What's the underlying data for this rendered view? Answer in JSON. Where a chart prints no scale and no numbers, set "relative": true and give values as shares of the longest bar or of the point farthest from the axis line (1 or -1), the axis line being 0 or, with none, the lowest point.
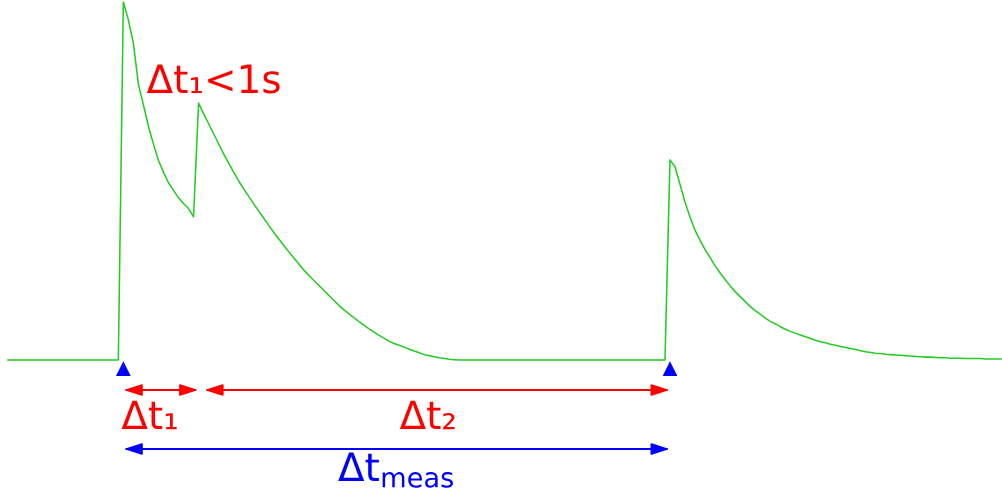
{
  "chart_data": {
    "type": "line",
    "relative": true,
    "categories": [
      null,
      null,
      null,
      null,
      null,
      null,
      null,
      null,
      null,
      null,
      null,
      null,
      null,
      null,
      null,
      null,
      null,
      null,
      null,
      null,
      null,
      null,
      null,
      null,
      null,
      null,
      null,
      null,
      null,
      null,
      null,
      null,
      null,
      null,
      null,
      null,
      null,
      null,
      null,
      null,
      null,
      null,
      null,
      null,
      null,
      null,
      null,
      null,
      null,
      null,
      null,
      null,
      null,
      null,
      null,
      null,
      null,
      null,
      null,
      null,
      null,
      null,
      null,
      null,
      null,
      null,
      null,
      null,
      null,
      null,
      null,
      null,
      null,
      null,
      null,
      null,
      null,
      null,
      null,
      null,
      null,
      null,
      null,
      null,
      null,
      null,
      null,
      null,
      null,
      null,
      null,
      null,
      null,
      null,
      null,
      null,
      null,
      null,
      null,
      null,
      null,
      null,
      null,
      null,
      null,
      null,
      null,
      null,
      null,
      null,
      null,
      null,
      null,
      null,
      null,
      null,
      null,
      null,
      null,
      null,
      null,
      null,
      null,
      null,
      null,
      null,
      null,
      null,
      null,
      null,
      null,
      null,
      null,
      null,
      null,
      null,
      null,
      null,
      null,
      null,
      null,
      null,
      null,
      null,
      null,
      null,
      null,
      null,
      null,
      null,
      null,
      null,
      null,
      null,
      null,
      null,
      null,
      null,
      null,
      null,
      null,
      null,
      null,
      null,
      null,
      null,
      null,
      null,
      null,
      null,
      null,
      null,
      null,
      null,
      null,
      null,
      null,
      null,
      null,
      null,
      null,
      null,
      null,
      null,
      null,
      null,
      null,
      null,
      null,
      null,
      null,
      null,
      null,
      null,
      null,
      null,
      null,
      null,
      null
    ],
    "series": [
      {
        "color": "#22cc22",
        "values": [
          0,
          0,
          0,
          0,
          0,
          0,
          0,
          0,
          0,
          0,
          0,
          0,
          0,
          0,
          0,
          0,
          0,
          0,
          0,
          0,
          0,
          0,
          0,
          1.0,
          0.95,
          0.885,
          0.77,
          0.713,
          0.653,
          0.603,
          0.558,
          0.524,
          0.495,
          0.474,
          0.453,
          0.437,
          0.423,
          0.4,
          0.718,
          0.688,
          0.66,
          0.632,
          0.604,
          0.576,
          0.55,
          0.525,
          0.5,
          0.478,
          0.457,
          0.436,
          0.416,
          0.396,
          0.376,
          0.356,
          0.338,
          0.32,
          0.302,
          0.285,
          0.268,
          0.251,
          0.236,
          0.222,
          0.208,
          0.194,
          0.18,
          0.166,
          0.152,
          0.14,
          0.129,
          0.118,
          0.107,
          0.097,
          0.087,
          0.078,
          0.069,
          0.061,
          0.052,
          0.046,
          0.041,
          0.036,
          0.03,
          0.025,
          0.02,
          0.015,
          0.012,
          0.009,
          0.006,
          0.004,
          0.002,
          0.001,
          0,
          0,
          0,
          0,
          0,
          0,
          0,
          0,
          0,
          0,
          0,
          0,
          0,
          0,
          0,
          0,
          0,
          0,
          0,
          0,
          0,
          0,
          0,
          0,
          0,
          0,
          0,
          0,
          0,
          0,
          0,
          0,
          0,
          0,
          0,
          0,
          0,
          0,
          0,
          0,
          0,
          0,
          0.559,
          0.54,
          0.49,
          0.441,
          0.399,
          0.362,
          0.334,
          0.308,
          0.286,
          0.263,
          0.243,
          0.225,
          0.207,
          0.191,
          0.177,
          0.163,
          0.149,
          0.138,
          0.128,
          0.117,
          0.108,
          0.101,
          0.093,
          0.086,
          0.08,
          0.075,
          0.07,
          0.065,
          0.06,
          0.055,
          0.051,
          0.048,
          0.044,
          0.041,
          0.038,
          0.035,
          0.032,
          0.029,
          0.026,
          0.023,
          0.021,
          0.019,
          0.018,
          0.016,
          0.015,
          0.014,
          0.013,
          0.012,
          0.011,
          0.01,
          0.009,
          0.008,
          0.008,
          0.007,
          0.006,
          0.006,
          0.005,
          0.005,
          0.005,
          0.004,
          0.004,
          0.004,
          0.004,
          0.003,
          0.003,
          0.003,
          0.003
        ]
      }
    ],
    "annotations": [
      "Δt₁<1s",
      "Δt₁",
      "Δt₂",
      "Δt$_{meas}$"
    ]
  }
}
